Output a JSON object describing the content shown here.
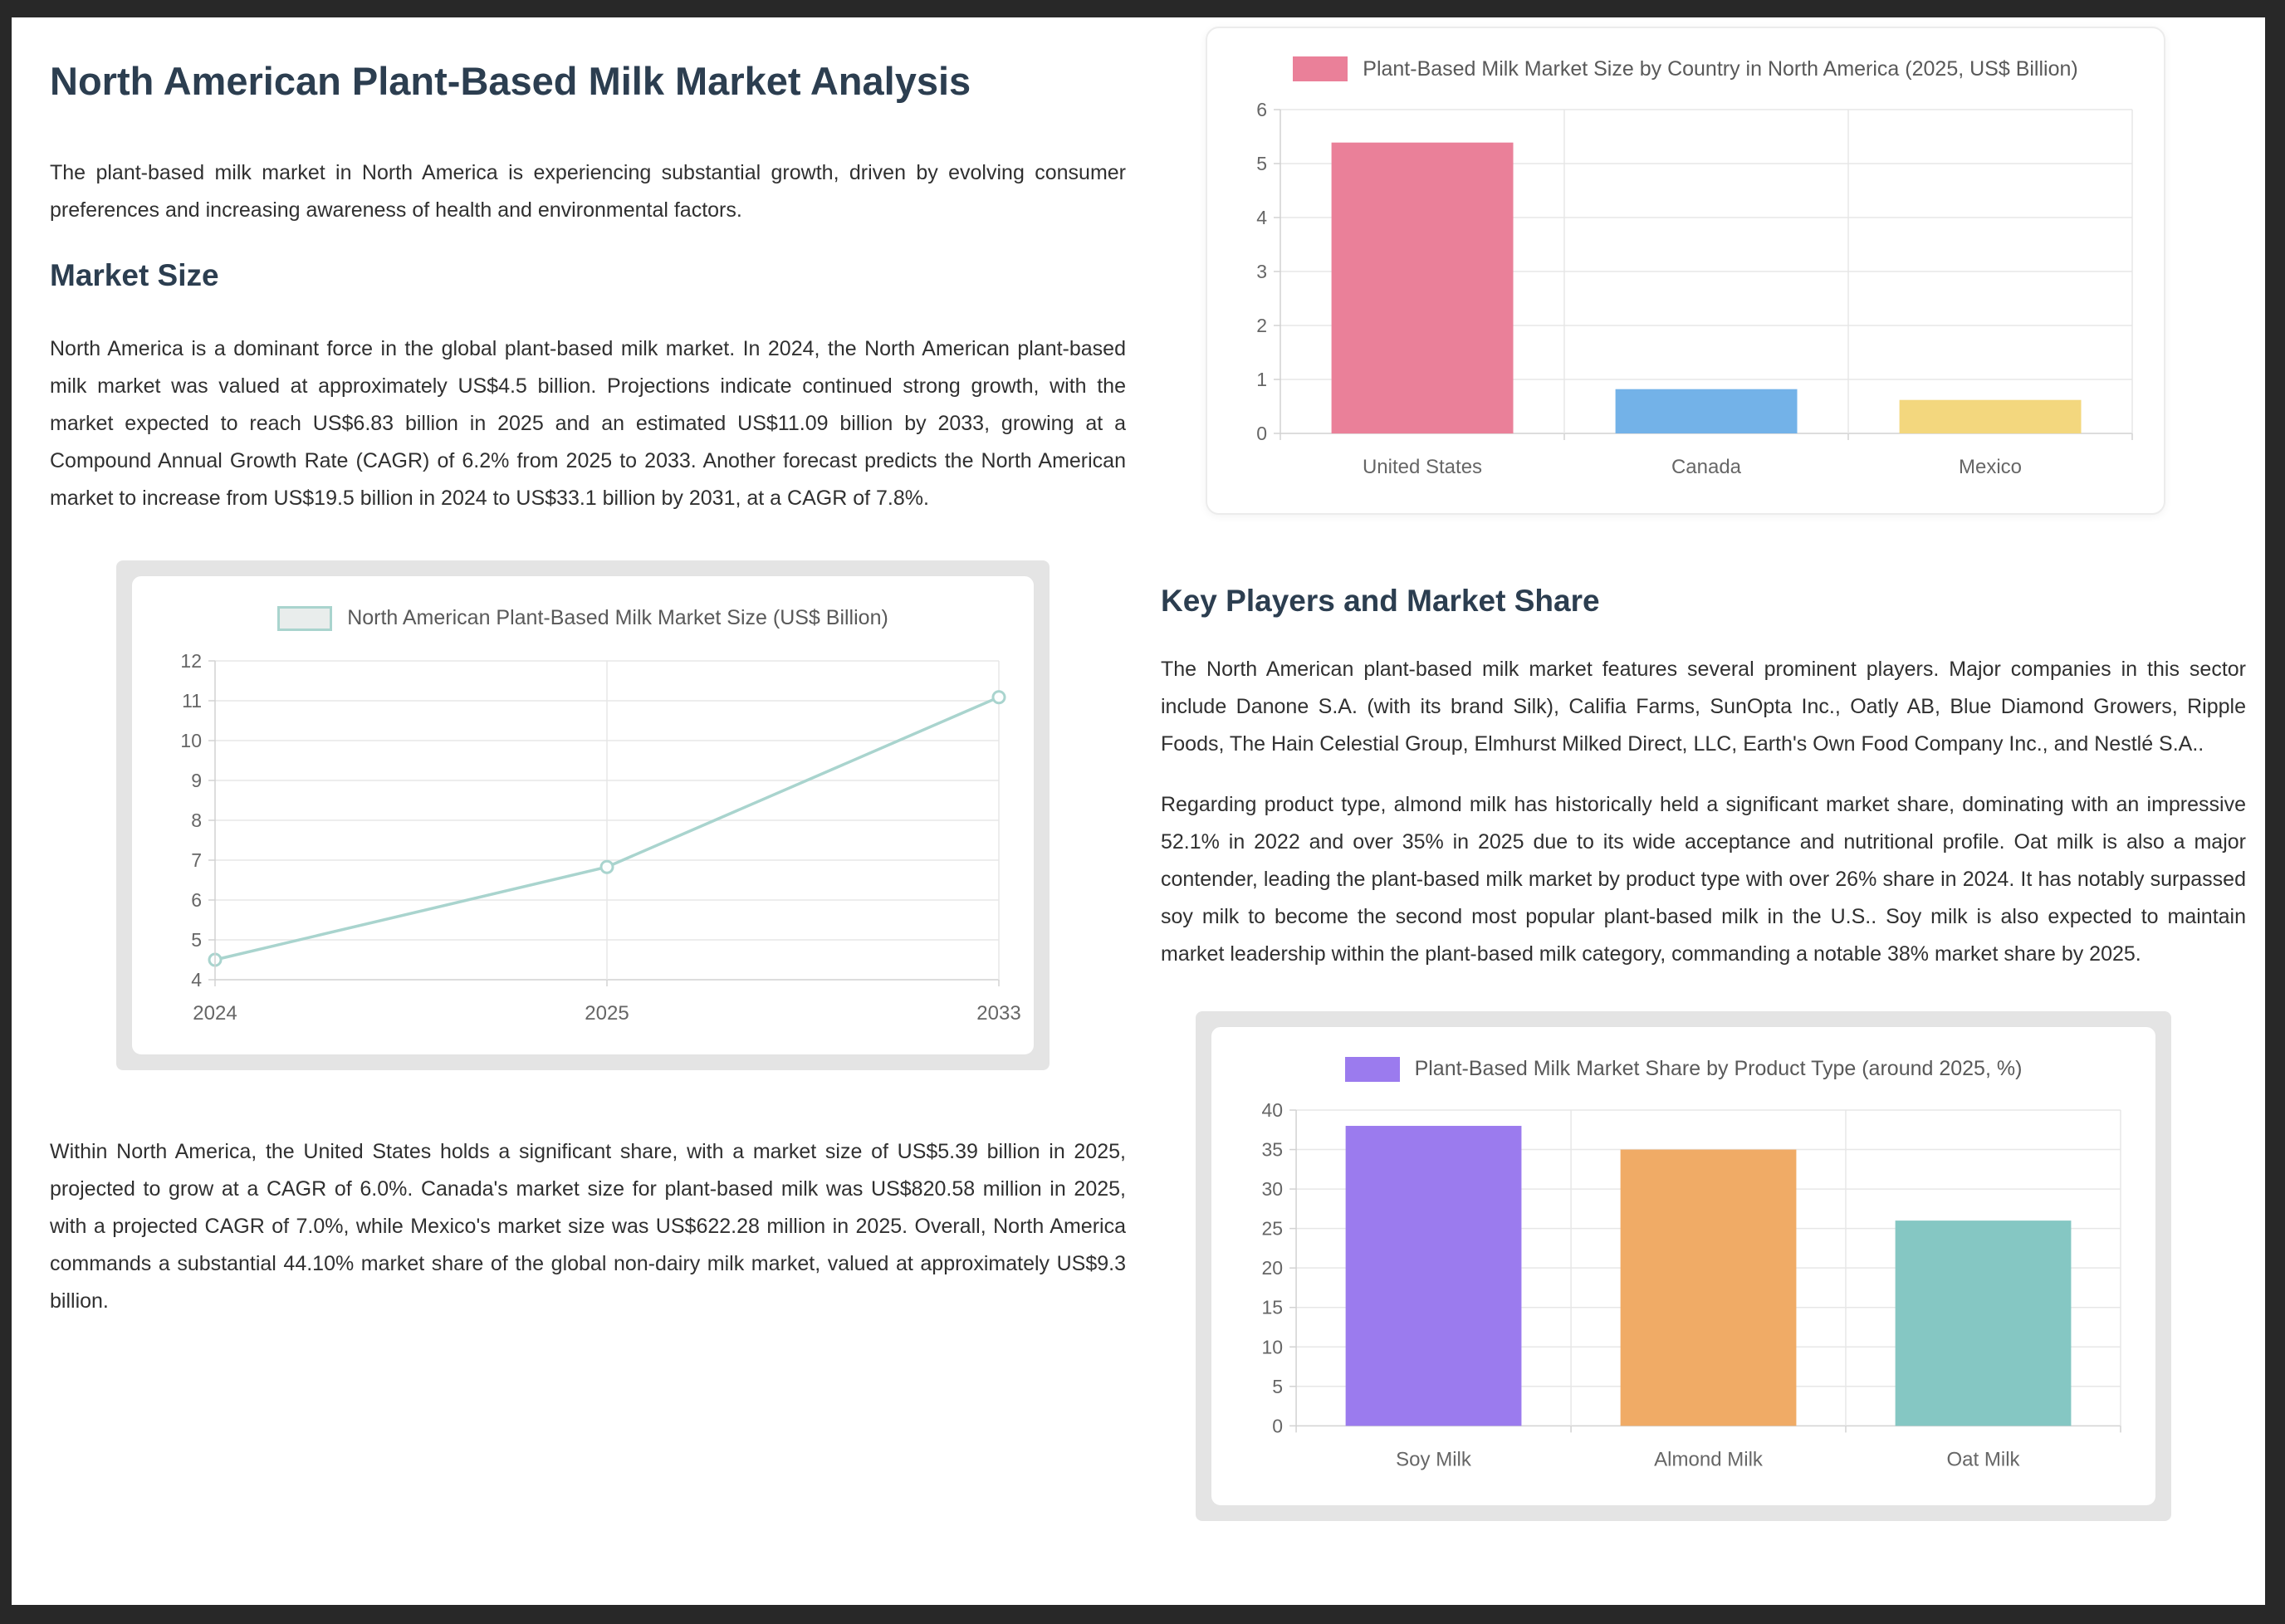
{
  "doc": {
    "title": "North American Plant-Based Milk Market Analysis",
    "intro": "The plant-based milk market in North America is experiencing substantial growth, driven by evolving consumer preferences and increasing awareness of health and environmental factors.",
    "market_size": {
      "heading": "Market Size",
      "para1": "North America is a dominant force in the global plant-based milk market. In 2024, the North American plant-based milk market was valued at approximately US$4.5 billion. Projections indicate continued strong growth, with the market expected to reach US$6.83 billion in 2025 and an estimated US$11.09 billion by 2033, growing at a Compound Annual Growth Rate (CAGR) of 6.2% from 2025 to 2033. Another forecast predicts the North American market to increase from US$19.5 billion in 2024 to US$33.1 billion by 2031, at a CAGR of 7.8%.",
      "para2": "Within North America, the United States holds a significant share, with a market size of US$5.39 billion in 2025, projected to grow at a CAGR of 6.0%. Canada's market size for plant-based milk was US$820.58 million in 2025, with a projected CAGR of 7.0%, while Mexico's market size was US$622.28 million in 2025. Overall, North America commands a substantial 44.10% market share of the global non-dairy milk market, valued at approximately US$9.3 billion."
    },
    "key_players": {
      "heading": "Key Players and Market Share",
      "para1": "The North American plant-based milk market features several prominent players. Major companies in this sector include Danone S.A. (with its brand Silk), Califia Farms, SunOpta Inc., Oatly AB, Blue Diamond Growers, Ripple Foods, The Hain Celestial Group, Elmhurst Milked Direct, LLC, Earth's Own Food Company Inc., and Nestlé S.A..",
      "para2": "Regarding product type, almond milk has historically held a significant market share, dominating with an impressive 52.1% in 2022 and over 35% in 2025 due to its wide acceptance and nutritional profile. Oat milk is also a major contender, leading the plant-based milk market by product type with over 26% share in 2024. It has notably surpassed soy milk to become the second most popular plant-based milk in the U.S.. Soy milk is also expected to maintain market leadership within the plant-based milk category, commanding a notable 38% market share by 2025."
    }
  },
  "chart_data": [
    {
      "id": "market-size-line",
      "type": "line",
      "title": "North American Plant-Based Milk Market Size (US$ Billion)",
      "categories": [
        "2024",
        "2025",
        "2033"
      ],
      "values": [
        4.5,
        6.83,
        11.09
      ],
      "ylim": [
        4,
        12
      ],
      "ytick_step": 1,
      "grid": true,
      "legend_position": "top",
      "line_color": "#a9d4ce",
      "legend_fill": "#e9edec"
    },
    {
      "id": "country-bar",
      "type": "bar",
      "title": "Plant-Based Milk Market Size by Country in North America (2025, US$ Billion)",
      "categories": [
        "United States",
        "Canada",
        "Mexico"
      ],
      "values": [
        5.39,
        0.82,
        0.62
      ],
      "ylim": [
        0,
        6
      ],
      "ytick_step": 1,
      "grid": true,
      "legend_position": "top",
      "bar_colors": [
        "#ea8099",
        "#73b2e8",
        "#f3d77e"
      ]
    },
    {
      "id": "product-share-bar",
      "type": "bar",
      "title": "Plant-Based Milk Market Share by Product Type (around 2025, %)",
      "categories": [
        "Soy Milk",
        "Almond Milk",
        "Oat Milk"
      ],
      "values": [
        38,
        35,
        26
      ],
      "ylim": [
        0,
        40
      ],
      "ytick_step": 5,
      "grid": true,
      "legend_position": "top",
      "bar_colors": [
        "#9b7bee",
        "#f0ab66",
        "#85c7c3"
      ]
    }
  ],
  "theme": {
    "page_background": "#282828",
    "panel_background": "#ffffff",
    "heading_color": "#2c3e50",
    "body_text_color": "#303030",
    "chart_frame_color": "#e4e4e4",
    "grid_color": "#e7e7e7",
    "axis_color": "#d2d2d2",
    "tick_text_color": "#666666",
    "legend_text_color": "#595959"
  }
}
